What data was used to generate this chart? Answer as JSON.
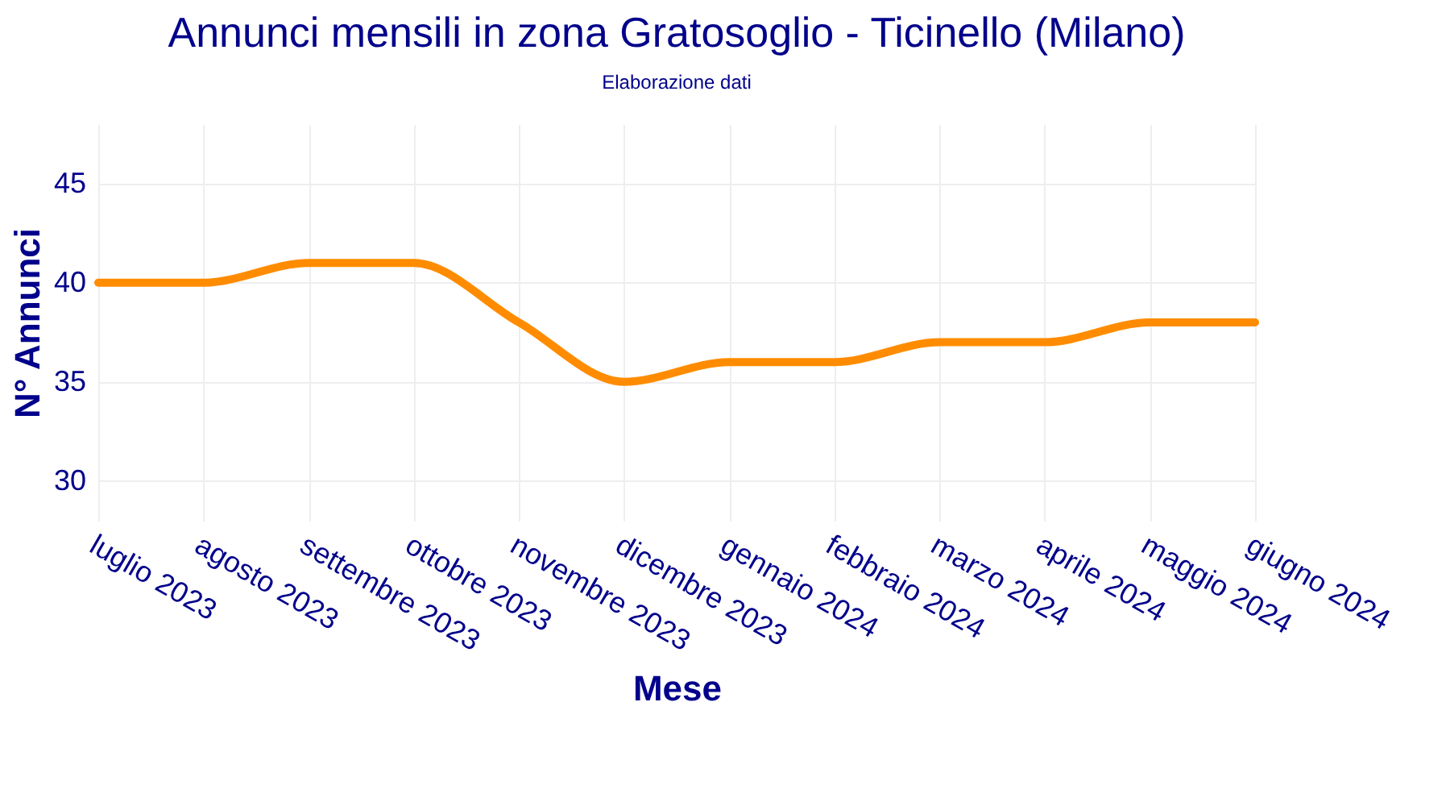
{
  "chart_data": {
    "type": "line",
    "title": "Annunci mensili in zona Gratosoglio - Ticinello (Milano)",
    "subtitle": "Elaborazione dati",
    "xlabel": "Mese",
    "ylabel": "N° Annunci",
    "categories": [
      "luglio 2023",
      "agosto 2023",
      "settembre 2023",
      "ottobre 2023",
      "novembre 2023",
      "dicembre 2023",
      "gennaio 2024",
      "febbraio 2024",
      "marzo 2024",
      "aprile 2024",
      "maggio 2024",
      "giugno 2024"
    ],
    "series": [
      {
        "color": "#ff8c00",
        "values": [
          40,
          40,
          41,
          41,
          38,
          35,
          36,
          36,
          37,
          37,
          38,
          38
        ]
      }
    ],
    "ylim": [
      28,
      48
    ],
    "yticks": [
      30,
      35,
      40,
      45
    ],
    "grid": true
  }
}
